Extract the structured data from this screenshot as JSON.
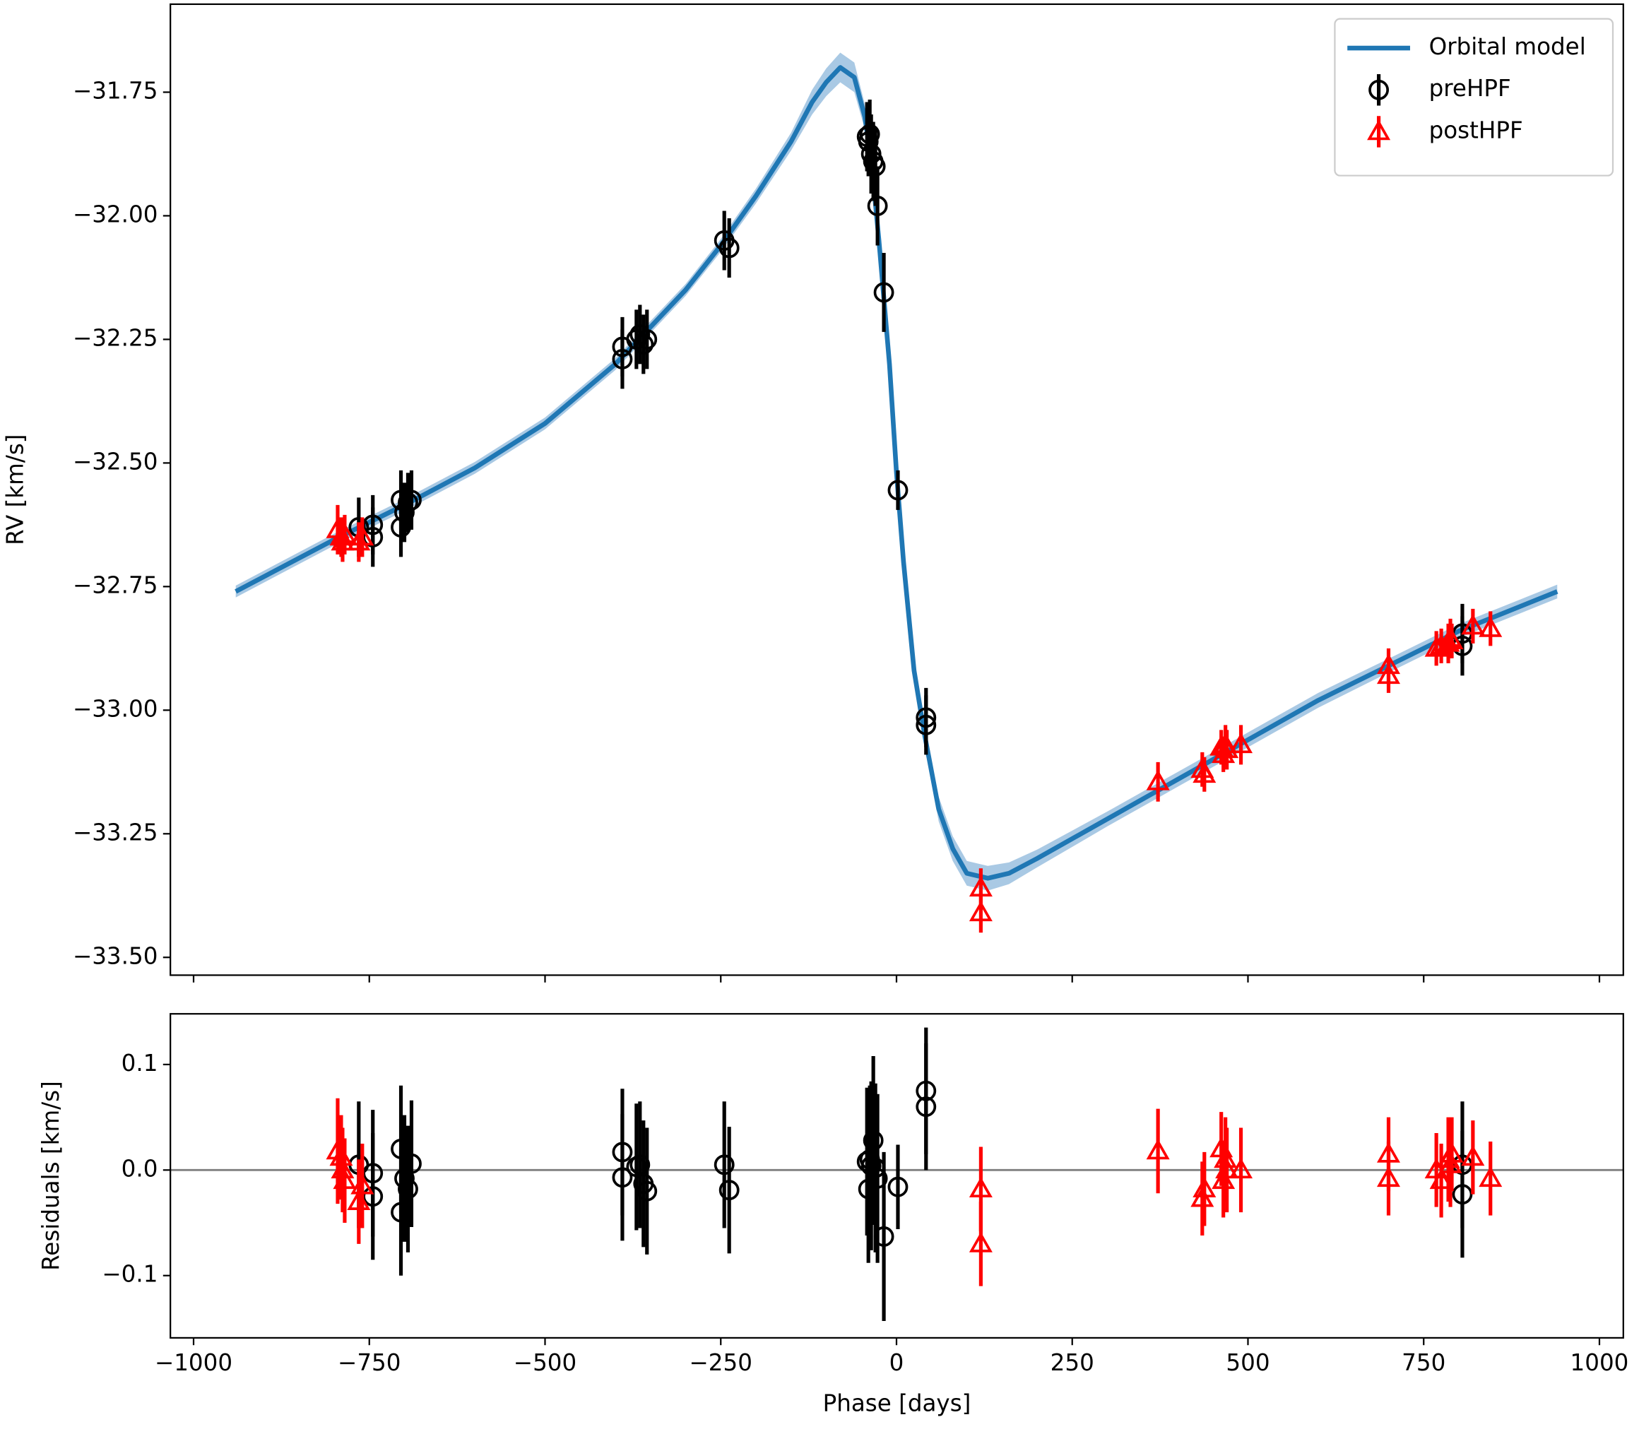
{
  "chart_data": [
    {
      "type": "scatter",
      "ylabel": "RV [km/s]",
      "legend": "upper right",
      "xtick_labels": false,
      "xlim": [
        -1033,
        1034
      ],
      "ylim": [
        -33.536,
        -31.572
      ],
      "xticks": [
        {
          "value": -1000,
          "label": "−1000"
        },
        {
          "value": -750,
          "label": "−750"
        },
        {
          "value": -500,
          "label": "−500"
        },
        {
          "value": -250,
          "label": "−250"
        },
        0,
        250,
        500,
        750,
        1000
      ],
      "yticks": [
        {
          "value": -31.75,
          "label": "−31.75"
        },
        {
          "value": -32.0,
          "label": "−32.00"
        },
        {
          "value": -32.25,
          "label": "−32.25"
        },
        {
          "value": -32.5,
          "label": "−32.50"
        },
        {
          "value": -32.75,
          "label": "−32.75"
        },
        {
          "value": -33.0,
          "label": "−33.00"
        },
        {
          "value": -33.25,
          "label": "−33.25"
        },
        {
          "value": -33.5,
          "label": "−33.50"
        }
      ],
      "series": [
        {
          "name": "Orbital model",
          "kind": "line",
          "color": "#1f77b4",
          "band_color": "#a9c9e4",
          "x": [
            -940,
            -800,
            -700,
            -600,
            -500,
            -400,
            -300,
            -250,
            -200,
            -150,
            -120,
            -100,
            -80,
            -60,
            -45,
            -35,
            -25,
            -10,
            0,
            10,
            25,
            40,
            60,
            80,
            100,
            130,
            160,
            200,
            300,
            400,
            500,
            600,
            700,
            800,
            940
          ],
          "values": [
            -32.76,
            -32.655,
            -32.585,
            -32.51,
            -32.42,
            -32.3,
            -32.15,
            -32.06,
            -31.96,
            -31.85,
            -31.77,
            -31.73,
            -31.7,
            -31.72,
            -31.8,
            -31.9,
            -32.05,
            -32.3,
            -32.52,
            -32.7,
            -32.92,
            -33.05,
            -33.2,
            -33.28,
            -33.33,
            -33.34,
            -33.33,
            -33.3,
            -33.22,
            -33.14,
            -33.06,
            -32.98,
            -32.91,
            -32.84,
            -32.76
          ],
          "band_lower": [
            -32.772,
            -32.667,
            -32.597,
            -32.522,
            -32.432,
            -32.312,
            -32.162,
            -32.073,
            -31.975,
            -31.868,
            -31.795,
            -31.758,
            -31.73,
            -31.75,
            -31.825,
            -31.92,
            -32.065,
            -32.312,
            -32.532,
            -32.712,
            -32.935,
            -33.07,
            -33.225,
            -33.305,
            -33.355,
            -33.365,
            -33.352,
            -33.318,
            -33.235,
            -33.155,
            -33.075,
            -32.995,
            -32.924,
            -32.854,
            -32.774
          ],
          "band_upper": [
            -32.748,
            -32.643,
            -32.573,
            -32.498,
            -32.408,
            -32.288,
            -32.138,
            -32.047,
            -31.945,
            -31.832,
            -31.745,
            -31.702,
            -31.67,
            -31.69,
            -31.775,
            -31.88,
            -32.035,
            -32.288,
            -32.508,
            -32.688,
            -32.905,
            -33.03,
            -33.175,
            -33.255,
            -33.305,
            -33.315,
            -33.308,
            -33.282,
            -33.205,
            -33.125,
            -33.045,
            -32.965,
            -32.896,
            -32.826,
            -32.746
          ]
        },
        {
          "name": "preHPF",
          "kind": "points",
          "marker": "circle",
          "color": "#000000",
          "x": [
            -765,
            -745,
            -745,
            -705,
            -705,
            -700,
            -695,
            -690,
            -390,
            -390,
            -370,
            -365,
            -360,
            -355,
            -245,
            -238,
            -42,
            -40,
            -38,
            -36,
            -33,
            -30,
            -27,
            -18,
            2,
            42,
            42,
            805,
            805
          ],
          "values": [
            -32.63,
            -32.625,
            -32.65,
            -32.575,
            -32.63,
            -32.6,
            -32.58,
            -32.575,
            -32.265,
            -32.29,
            -32.25,
            -32.24,
            -32.26,
            -32.25,
            -32.05,
            -32.065,
            -31.84,
            -31.85,
            -31.835,
            -31.875,
            -31.89,
            -31.9,
            -31.98,
            -32.155,
            -32.555,
            -33.015,
            -33.03,
            -32.845,
            -32.87
          ],
          "errors": [
            0.06,
            0.06,
            0.06,
            0.06,
            0.06,
            0.06,
            0.06,
            0.06,
            0.06,
            0.06,
            0.06,
            0.06,
            0.06,
            0.06,
            0.06,
            0.06,
            0.07,
            0.07,
            0.07,
            0.08,
            0.08,
            0.08,
            0.08,
            0.08,
            0.04,
            0.06,
            0.06,
            0.06,
            0.06
          ]
        },
        {
          "name": "postHPF",
          "kind": "points",
          "marker": "triangle",
          "color": "#ff0000",
          "x": [
            -795,
            -790,
            -788,
            -785,
            -765,
            -760,
            120,
            120,
            372,
            435,
            438,
            462,
            465,
            468,
            470,
            490,
            700,
            700,
            768,
            775,
            785,
            788,
            790,
            820,
            845
          ],
          "values": [
            -32.635,
            -32.65,
            -32.66,
            -32.645,
            -32.66,
            -32.65,
            -33.36,
            -33.41,
            -33.145,
            -33.12,
            -33.13,
            -33.075,
            -33.09,
            -33.07,
            -33.08,
            -33.07,
            -32.91,
            -32.93,
            -32.875,
            -32.87,
            -32.865,
            -32.855,
            -32.86,
            -32.83,
            -32.835
          ],
          "errors": [
            0.05,
            0.04,
            0.04,
            0.04,
            0.04,
            0.04,
            0.04,
            0.04,
            0.04,
            0.035,
            0.035,
            0.035,
            0.035,
            0.04,
            0.04,
            0.04,
            0.035,
            0.035,
            0.035,
            0.035,
            0.04,
            0.04,
            0.035,
            0.035,
            0.035
          ]
        }
      ]
    },
    {
      "type": "scatter",
      "ylabel": "Residuals [km/s]",
      "xlabel": "Phase [days]",
      "xtick_labels": true,
      "hline": 0,
      "hline_color": "#808080",
      "xlim": [
        -1033,
        1034
      ],
      "ylim": [
        -0.159,
        0.148
      ],
      "xticks": [
        {
          "value": -1000,
          "label": "−1000"
        },
        {
          "value": -750,
          "label": "−750"
        },
        {
          "value": -500,
          "label": "−500"
        },
        {
          "value": -250,
          "label": "−250"
        },
        0,
        250,
        500,
        750,
        1000
      ],
      "yticks": [
        0.1,
        {
          "value": 0.0,
          "label": "0.0"
        },
        {
          "value": -0.1,
          "label": "−0.1"
        }
      ],
      "series": [
        {
          "kind": "points",
          "marker": "circle",
          "color": "#000000",
          "x": [
            -765,
            -745,
            -745,
            -705,
            -705,
            -700,
            -695,
            -690,
            -390,
            -390,
            -370,
            -365,
            -360,
            -355,
            -245,
            -238,
            -42,
            -40,
            -38,
            -36,
            -33,
            -30,
            -27,
            -18,
            2,
            42,
            42,
            805,
            805
          ],
          "values": [
            0.005,
            -0.003,
            -0.025,
            0.02,
            -0.04,
            -0.008,
            -0.018,
            0.006,
            0.017,
            -0.007,
            0.003,
            0.005,
            -0.013,
            -0.02,
            0.005,
            -0.019,
            0.008,
            -0.018,
            0.01,
            0.004,
            0.028,
            0.002,
            -0.008,
            -0.063,
            -0.016,
            0.075,
            0.06,
            0.005,
            -0.023
          ],
          "errors": [
            0.06,
            0.06,
            0.06,
            0.06,
            0.06,
            0.06,
            0.06,
            0.06,
            0.06,
            0.06,
            0.06,
            0.06,
            0.06,
            0.06,
            0.06,
            0.06,
            0.07,
            0.07,
            0.07,
            0.08,
            0.08,
            0.08,
            0.08,
            0.08,
            0.04,
            0.06,
            0.06,
            0.06,
            0.06
          ]
        },
        {
          "kind": "points",
          "marker": "triangle",
          "color": "#ff0000",
          "x": [
            -795,
            -790,
            -788,
            -785,
            -765,
            -760,
            120,
            120,
            372,
            435,
            438,
            462,
            465,
            468,
            470,
            490,
            700,
            700,
            768,
            775,
            785,
            788,
            790,
            820,
            845
          ],
          "values": [
            0.018,
            0.012,
            0.0,
            -0.01,
            -0.03,
            -0.015,
            -0.018,
            -0.07,
            0.018,
            -0.027,
            -0.018,
            0.02,
            -0.01,
            0.01,
            0.0,
            0.0,
            0.015,
            -0.008,
            0.0,
            -0.01,
            0.01,
            0.005,
            0.015,
            0.012,
            -0.008
          ],
          "errors": [
            0.05,
            0.04,
            0.04,
            0.04,
            0.04,
            0.04,
            0.04,
            0.04,
            0.04,
            0.035,
            0.035,
            0.035,
            0.035,
            0.04,
            0.04,
            0.04,
            0.035,
            0.035,
            0.035,
            0.035,
            0.04,
            0.04,
            0.035,
            0.035,
            0.035
          ]
        }
      ]
    }
  ]
}
